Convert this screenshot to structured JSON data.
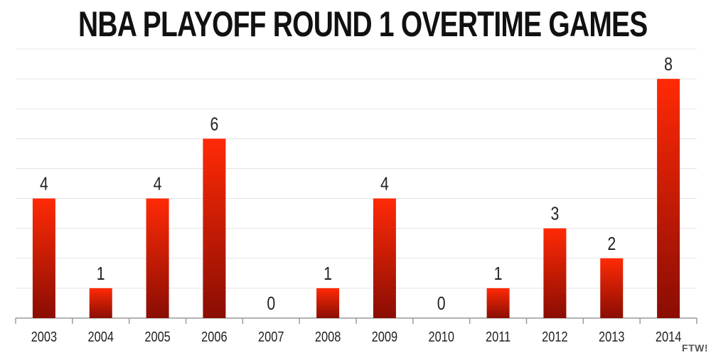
{
  "chart_data": {
    "type": "bar",
    "title": "NBA PLAYOFF ROUND 1 OVERTIME GAMES",
    "categories": [
      "2003",
      "2004",
      "2005",
      "2006",
      "2007",
      "2008",
      "2009",
      "2010",
      "2011",
      "2012",
      "2013",
      "2014"
    ],
    "values": [
      4,
      1,
      4,
      6,
      0,
      1,
      4,
      0,
      1,
      3,
      2,
      8
    ],
    "xlabel": "",
    "ylabel": "",
    "ylim": [
      0,
      9
    ],
    "grid": true,
    "data_labels": true,
    "bar_color_top": "#ff2a05",
    "bar_color_bottom": "#8a0d04"
  },
  "watermark": "FTW!"
}
